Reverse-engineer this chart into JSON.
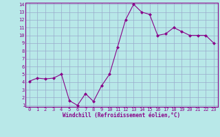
{
  "x": [
    0,
    1,
    2,
    3,
    4,
    5,
    6,
    7,
    8,
    9,
    10,
    11,
    12,
    13,
    14,
    15,
    16,
    17,
    18,
    19,
    20,
    21,
    22,
    23
  ],
  "y": [
    4.1,
    4.5,
    4.4,
    4.5,
    5.0,
    1.6,
    1.0,
    2.5,
    1.5,
    3.5,
    5.0,
    8.5,
    12.0,
    14.0,
    13.0,
    12.7,
    10.0,
    10.2,
    11.0,
    10.5,
    10.0,
    10.0,
    10.0,
    9.0
  ],
  "line_color": "#880088",
  "marker": "D",
  "marker_size": 2.0,
  "bg_color": "#b8e8e8",
  "grid_color": "#99aacc",
  "xlabel": "Windchill (Refroidissement éolien,°C)",
  "xlabel_color": "#880088",
  "tick_color": "#880088",
  "spine_color": "#880088",
  "ylim": [
    1,
    14
  ],
  "xlim": [
    -0.5,
    23.5
  ],
  "yticks": [
    1,
    2,
    3,
    4,
    5,
    6,
    7,
    8,
    9,
    10,
    11,
    12,
    13,
    14
  ],
  "xticks": [
    0,
    1,
    2,
    3,
    4,
    5,
    6,
    7,
    8,
    9,
    10,
    11,
    12,
    13,
    14,
    15,
    16,
    17,
    18,
    19,
    20,
    21,
    22,
    23
  ],
  "tick_fontsize": 5.0,
  "xlabel_fontsize": 5.5
}
